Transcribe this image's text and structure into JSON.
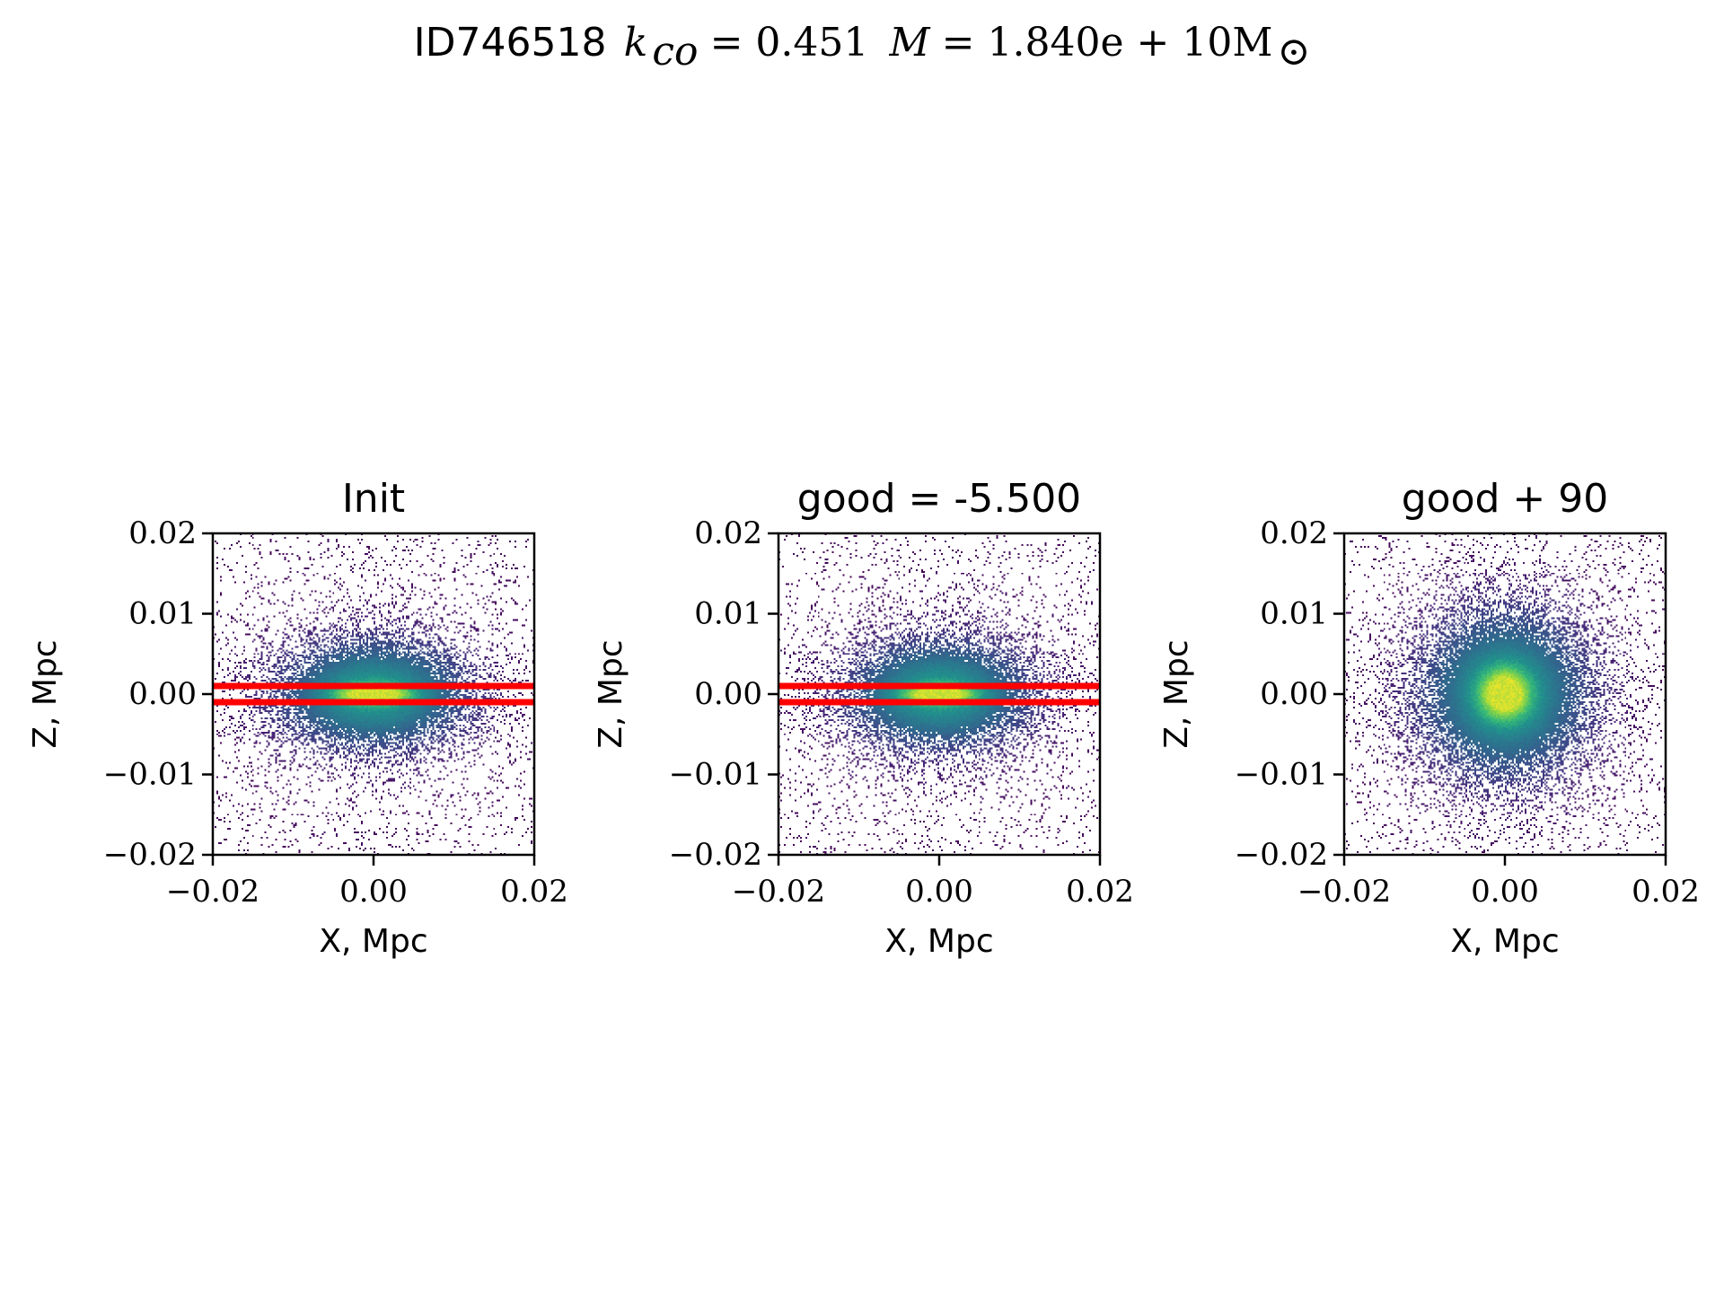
{
  "figure": {
    "suptitle": {
      "id_text": "ID746518",
      "kco_symbol": "k",
      "kco_subscript": "co",
      "kco_value": "= 0.451",
      "mass_symbol": "M",
      "mass_value": "= 1.840e + 10M",
      "mass_subscript": "⊙"
    }
  },
  "chart_data": [
    {
      "type": "heatmap",
      "title": "Init",
      "xlabel": "X, Mpc",
      "ylabel": "Z, Mpc",
      "xlim": [
        -0.02,
        0.02
      ],
      "ylim": [
        -0.02,
        0.02
      ],
      "x_ticks": [
        -0.02,
        0.0,
        0.02
      ],
      "x_tick_labels": [
        "−0.02",
        "0.00",
        "0.02"
      ],
      "y_ticks": [
        -0.02,
        -0.01,
        0.0,
        0.01,
        0.02
      ],
      "y_tick_labels": [
        "−0.02",
        "−0.01",
        "0.00",
        "0.01",
        "0.02"
      ],
      "colormap": "viridis",
      "distribution": {
        "center": [
          0.0,
          0.0
        ],
        "sigma_x": 0.0075,
        "sigma_z": 0.0042,
        "core_sigma_x": 0.0035,
        "core_sigma_z": 0.0008
      },
      "horizontal_lines": [
        0.001,
        -0.001
      ],
      "line_color": "#ff0000",
      "grid": false
    },
    {
      "type": "heatmap",
      "title": "good = -5.500",
      "xlabel": "X, Mpc",
      "ylabel": "Z, Mpc",
      "xlim": [
        -0.02,
        0.02
      ],
      "ylim": [
        -0.02,
        0.02
      ],
      "x_ticks": [
        -0.02,
        0.0,
        0.02
      ],
      "x_tick_labels": [
        "−0.02",
        "0.00",
        "0.02"
      ],
      "y_ticks": [
        -0.02,
        -0.01,
        0.0,
        0.01,
        0.02
      ],
      "y_tick_labels": [
        "−0.02",
        "−0.01",
        "0.00",
        "0.01",
        "0.02"
      ],
      "colormap": "viridis",
      "distribution": {
        "center": [
          0.0,
          0.0
        ],
        "sigma_x": 0.0072,
        "sigma_z": 0.0042,
        "core_sigma_x": 0.0033,
        "core_sigma_z": 0.0008
      },
      "horizontal_lines": [
        0.001,
        -0.001
      ],
      "line_color": "#ff0000",
      "grid": false
    },
    {
      "type": "heatmap",
      "title": "good + 90",
      "xlabel": "X, Mpc",
      "ylabel": "Z, Mpc",
      "xlim": [
        -0.02,
        0.02
      ],
      "ylim": [
        -0.02,
        0.02
      ],
      "x_ticks": [
        -0.02,
        0.0,
        0.02
      ],
      "x_tick_labels": [
        "−0.02",
        "0.00",
        "0.02"
      ],
      "y_ticks": [
        -0.02,
        -0.01,
        0.0,
        0.01,
        0.02
      ],
      "y_tick_labels": [
        "−0.02",
        "−0.01",
        "0.00",
        "0.01",
        "0.02"
      ],
      "colormap": "viridis",
      "distribution": {
        "center": [
          0.0,
          0.0
        ],
        "sigma_x": 0.0065,
        "sigma_z": 0.0065,
        "core_sigma_x": 0.0022,
        "core_sigma_z": 0.0022
      },
      "horizontal_lines": [],
      "line_color": "#ff0000",
      "grid": false
    }
  ]
}
